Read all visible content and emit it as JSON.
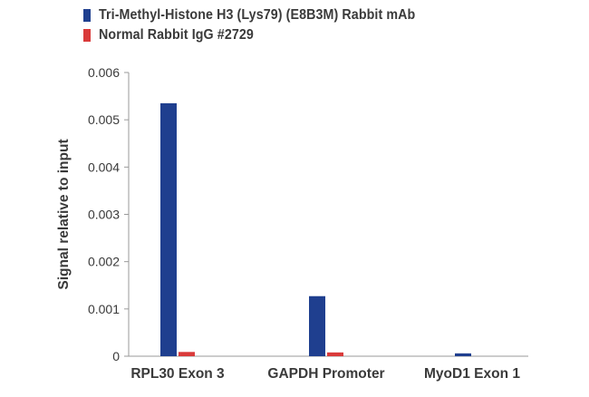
{
  "chart_data": {
    "type": "bar",
    "categories": [
      "RPL30 Exon 3",
      "GAPDH Promoter",
      "MyoD1 Exon 1"
    ],
    "series": [
      {
        "name": "Tri-Methyl-Histone H3 (Lys79) (E8B3M) Rabbit mAb",
        "color": "#1f3f8f",
        "values": [
          0.00535,
          0.00127,
          6e-05
        ]
      },
      {
        "name": "Normal Rabbit IgG #2729",
        "color": "#d93a3a",
        "values": [
          9e-05,
          8e-05,
          0.0
        ]
      }
    ],
    "ylabel": "Signal relative to input",
    "ylim": [
      0,
      0.006
    ],
    "yticks": [
      "0",
      "0.001",
      "0.002",
      "0.003",
      "0.004",
      "0.005",
      "0.006"
    ],
    "grid": false,
    "legend_position": "top-left"
  }
}
